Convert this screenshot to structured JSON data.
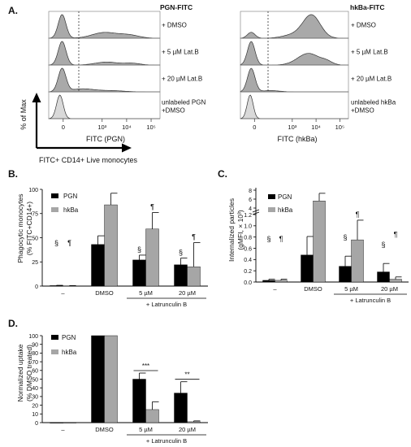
{
  "panel_letters": {
    "a": "A.",
    "b": "B.",
    "c": "C.",
    "d": "D."
  },
  "panel_a": {
    "left": {
      "title": "PGN-FITC",
      "xlabel": "FITC (PGN)",
      "ticks": [
        "0",
        "10³",
        "10⁴",
        "10⁵"
      ],
      "rows": [
        "+ DMSO",
        "+ 5 µM Lat.B",
        "+ 20 µM Lat.B",
        "unlabeled PGN\n+DMSO"
      ]
    },
    "right": {
      "title": "hkBa-FITC",
      "xlabel": "FITC (hkBa)",
      "ticks": [
        "0",
        "10³",
        "10⁴",
        "10⁵"
      ],
      "rows": [
        "+ DMSO",
        "+ 5 µM Lat.B",
        "+ 20 µM Lat.B",
        "unlabeled hkBa\n+DMSO"
      ]
    },
    "yaxis_label": "% of Max",
    "gate_label": "FITC+ CD14+ Live monocytes",
    "hist_fill": "#a9a9a9",
    "unlabeled_fill": "#d9d9d9"
  },
  "legend": {
    "pgn": "PGN",
    "hkba": "hkBa"
  },
  "colors": {
    "pgn": "#000000",
    "hkba": "#a6a6a6"
  },
  "chart_data": [
    {
      "type": "bar",
      "panel": "B",
      "categories": [
        "–",
        "DMSO",
        "5 µM",
        "20 µM"
      ],
      "group_label": "+ Latrunculin B",
      "ylabel": "Phagocytic monocytes\n(% FITC+CD14+)",
      "ylim": [
        0,
        100
      ],
      "yticks": [
        "0",
        "25",
        "50",
        "75",
        "100"
      ],
      "series": [
        {
          "name": "PGN",
          "values": [
            0.5,
            43,
            27,
            22
          ],
          "errors": [
            0.3,
            9,
            5,
            7
          ]
        },
        {
          "name": "hkBa",
          "values": [
            0.3,
            84,
            59,
            20
          ],
          "errors": [
            0.2,
            12,
            17,
            25
          ]
        }
      ],
      "annotations": [
        [
          "§",
          "¶"
        ],
        [
          "",
          ""
        ],
        [
          "§",
          "¶"
        ],
        [
          "§",
          "¶"
        ]
      ]
    },
    {
      "type": "bar",
      "panel": "C",
      "categories": [
        "–",
        "DMSO",
        "5 µM",
        "20 µM"
      ],
      "group_label": "+ Latrunculin B",
      "ylabel": "Internalized particles\n(gMFI, × 10³)",
      "yticks_low": [
        "0.0",
        "0.2",
        "0.4",
        "0.6",
        "0.8",
        "1.0",
        "1.2"
      ],
      "yticks_high": [
        "4",
        "6",
        "8"
      ],
      "axis_break": true,
      "series": [
        {
          "name": "PGN",
          "values": [
            0.03,
            0.48,
            0.28,
            0.18
          ],
          "errors": [
            0.02,
            0.33,
            0.18,
            0.15
          ]
        },
        {
          "name": "hkBa",
          "values": [
            0.03,
            5.6,
            0.75,
            0.05
          ],
          "errors": [
            0.02,
            1.7,
            0.35,
            0.04
          ]
        }
      ],
      "annotations": [
        [
          "§",
          "¶"
        ],
        [
          "",
          ""
        ],
        [
          "§",
          "¶"
        ],
        [
          "§",
          "¶"
        ]
      ]
    },
    {
      "type": "bar",
      "panel": "D",
      "categories": [
        "–",
        "DMSO",
        "5 µM",
        "20 µM"
      ],
      "group_label": "+ Latrunculin B",
      "ylabel": "Normalized uptake\n(% DMSO treated)",
      "ylim": [
        0,
        100
      ],
      "yticks": [
        "0",
        "10",
        "20",
        "30",
        "40",
        "50",
        "60",
        "70",
        "80",
        "90",
        "100"
      ],
      "series": [
        {
          "name": "PGN",
          "values": [
            0,
            100,
            50,
            34
          ],
          "errors": [
            0,
            0,
            7,
            13
          ]
        },
        {
          "name": "hkBa",
          "values": [
            0,
            100,
            15,
            1
          ],
          "errors": [
            0,
            0,
            9,
            1
          ]
        }
      ],
      "significance": [
        "",
        "",
        "***",
        "**"
      ]
    }
  ]
}
